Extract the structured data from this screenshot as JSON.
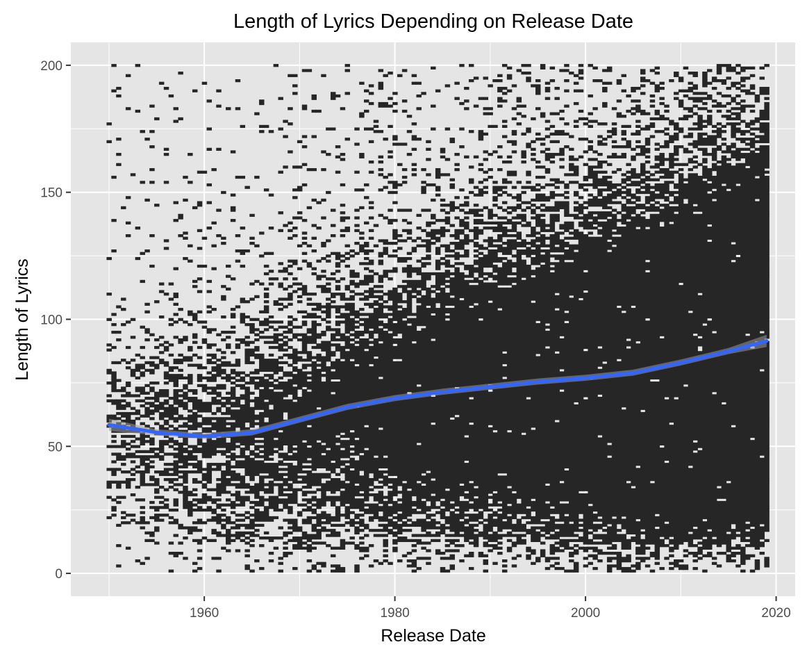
{
  "chart_data": {
    "type": "heatmap",
    "title": "Length of Lyrics Depending on Release Date",
    "xlabel": "Release Date",
    "ylabel": "Length of Lyrics",
    "xlim": [
      1946,
      2022
    ],
    "ylim": [
      -9,
      209
    ],
    "x_ticks": [
      1960,
      1980,
      2000,
      2020
    ],
    "y_ticks": [
      0,
      50,
      100,
      150,
      200
    ],
    "x_tick_labels": [
      "1960",
      "1980",
      "2000",
      "2020"
    ],
    "y_tick_labels": [
      "0",
      "50",
      "100",
      "150",
      "200"
    ],
    "grid": true,
    "legend": "none",
    "tile_fill_color": "#262626",
    "panel_background": "#e5e5e5",
    "grid_color": "#ffffff",
    "tile_extent": {
      "x": [
        1950,
        2019
      ],
      "y": [
        1,
        200
      ]
    },
    "series": [
      {
        "type": "smooth_line",
        "color": "#3366ff",
        "ci_band_color": "#999999",
        "x": [
          1950,
          1955,
          1960,
          1965,
          1970,
          1975,
          1980,
          1985,
          1990,
          1995,
          2000,
          2005,
          2010,
          2015,
          2019
        ],
        "y": [
          58.5,
          55.5,
          54.0,
          55.5,
          60.5,
          65.5,
          69.0,
          71.5,
          73.5,
          75.5,
          77.0,
          79.0,
          83.0,
          87.5,
          91.5
        ]
      }
    ]
  }
}
